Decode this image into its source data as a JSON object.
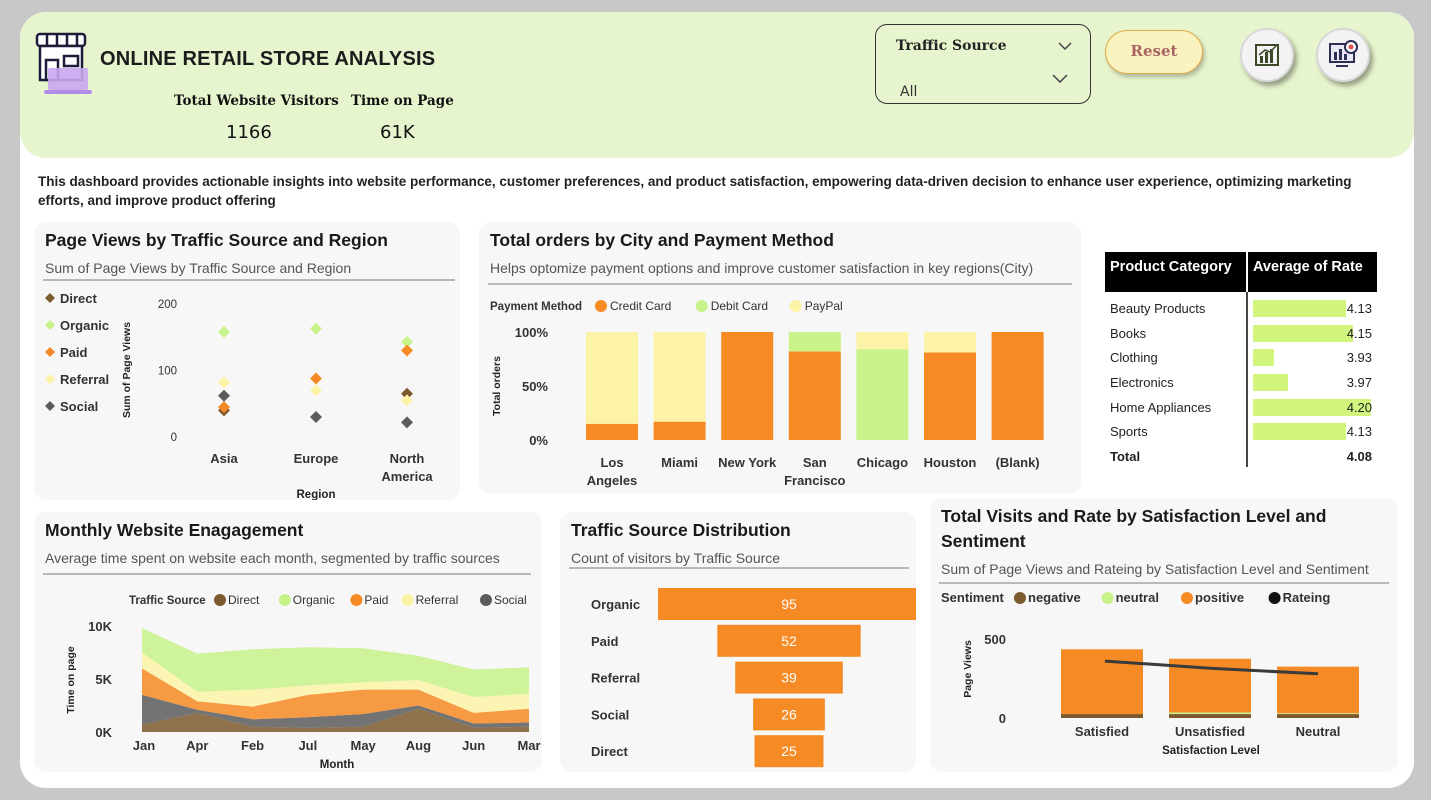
{
  "header": {
    "title": "ONLINE RETAIL STORE ANALYSIS",
    "kpis": [
      {
        "label": "Total Website Visitors",
        "value": "1166"
      },
      {
        "label": "Time on Page",
        "value": "61K"
      }
    ],
    "filter": {
      "label": "Traffic Source",
      "value": "All"
    },
    "reset_label": "Reset",
    "icons": [
      "store-logo-icon",
      "bar-chart-icon",
      "analytics-icon",
      "chevron-down-icon"
    ]
  },
  "description": "This dashboard provides actionable insights into website performance, customer preferences, and product satisfaction, empowering data-driven decision to enhance user experience, optimizing marketing efforts, and improve product offering",
  "colors": {
    "direct": "#7b5a2e",
    "organic": "#c8f28a",
    "paid": "#f68a24",
    "referral": "#fdf3a6",
    "social": "#5c5c5c",
    "accent_bar": "#d2f57e",
    "header_bg": "#e7f5ce"
  },
  "chart_data": [
    {
      "id": "page-views",
      "type": "scatter",
      "title": "Page Views by Traffic Source and Region",
      "subtitle": "Sum of Page Views by Traffic Source and Region",
      "xlabel": "Region",
      "ylabel": "Sum of Page Views",
      "ylim": [
        0,
        200
      ],
      "yticks": [
        "200",
        "100",
        "0"
      ],
      "categories": [
        "Asia",
        "Europe",
        "North America"
      ],
      "series": [
        {
          "name": "Direct",
          "values": [
            40,
            0,
            65
          ]
        },
        {
          "name": "Organic",
          "values": [
            158,
            163,
            143
          ]
        },
        {
          "name": "Paid",
          "values": [
            45,
            88,
            130
          ]
        },
        {
          "name": "Referral",
          "values": [
            82,
            70,
            55
          ]
        },
        {
          "name": "Social",
          "values": [
            62,
            30,
            22
          ]
        }
      ]
    },
    {
      "id": "orders-city",
      "type": "bar",
      "stacked": "percent",
      "title": "Total orders by City and Payment Method",
      "subtitle": "Helps optomize payment options and improve customer satisfaction in key regions(City)",
      "legend_title": "Payment Method",
      "ylabel": "Total orders",
      "yticks": [
        "100%",
        "50%",
        "0%"
      ],
      "categories": [
        "Los Angeles",
        "Miami",
        "New York",
        "San Francisco",
        "Chicago",
        "Houston",
        "(Blank)"
      ],
      "series": [
        {
          "name": "Credit Card",
          "values": [
            15,
            17,
            100,
            82,
            0,
            81,
            100
          ]
        },
        {
          "name": "Debit Card",
          "values": [
            0,
            0,
            0,
            18,
            84,
            0,
            0
          ]
        },
        {
          "name": "PayPal",
          "values": [
            85,
            83,
            0,
            0,
            16,
            19,
            0
          ]
        }
      ]
    },
    {
      "id": "monthly-engagement",
      "type": "area",
      "title": "Monthly Website Enagagement",
      "subtitle": "Average time spent on website each month, segmented by traffic sources",
      "legend_title": "Traffic Source",
      "xlabel": "Month",
      "ylabel": "Time on page",
      "yticks": [
        "10K",
        "5K",
        "0K"
      ],
      "ylim": [
        0,
        10000
      ],
      "categories": [
        "Jan",
        "Apr",
        "Feb",
        "Jul",
        "May",
        "Aug",
        "Jun",
        "Mar"
      ],
      "series": [
        {
          "name": "Direct",
          "values": [
            700,
            1800,
            500,
            400,
            500,
            2200,
            400,
            500
          ]
        },
        {
          "name": "Organic",
          "values": [
            2300,
            3600,
            3800,
            3600,
            3200,
            2300,
            2600,
            2500
          ]
        },
        {
          "name": "Paid",
          "values": [
            2500,
            800,
            1200,
            2100,
            2300,
            1500,
            1000,
            1300
          ]
        },
        {
          "name": "Referral",
          "values": [
            1500,
            900,
            1600,
            900,
            700,
            900,
            1500,
            1400
          ]
        },
        {
          "name": "Social",
          "values": [
            2800,
            300,
            700,
            1000,
            1200,
            300,
            400,
            400
          ]
        }
      ]
    },
    {
      "id": "traffic-dist",
      "type": "bar",
      "orientation": "funnel",
      "title": "Traffic Source Distribution",
      "subtitle": "Count of visitors by Traffic Source",
      "categories": [
        "Organic",
        "Paid",
        "Referral",
        "Social",
        "Direct"
      ],
      "values": [
        95,
        52,
        39,
        26,
        25
      ],
      "labels": [
        "95",
        "52",
        "39",
        "26",
        "25"
      ]
    },
    {
      "id": "satisfaction",
      "type": "bar",
      "stacked": true,
      "title": "Total Visits and Rate by Satisfaction Level and Sentiment",
      "subtitle": "Sum of Page Views and Rateing by Satisfaction Level and Sentiment",
      "legend_title": "Sentiment",
      "xlabel": "Satisfaction Level",
      "ylabel": "Page Views",
      "yticks": [
        "500",
        "0"
      ],
      "ylim": [
        0,
        500
      ],
      "categories": [
        "Satisfied",
        "Unsatisfied",
        "Neutral"
      ],
      "series": [
        {
          "name": "negative",
          "values": [
            25,
            25,
            25
          ]
        },
        {
          "name": "neutral",
          "values": [
            0,
            10,
            5
          ]
        },
        {
          "name": "positive",
          "values": [
            410,
            340,
            295
          ]
        }
      ],
      "line": {
        "name": "Rateing",
        "values": [
          360,
          315,
          280
        ]
      }
    }
  ],
  "table": {
    "headers": [
      "Product Category",
      "Average of Rate"
    ],
    "rows": [
      {
        "category": "Beauty Products",
        "value": "4.13",
        "num": 4.13
      },
      {
        "category": "Books",
        "value": "4.15",
        "num": 4.15
      },
      {
        "category": "Clothing",
        "value": "3.93",
        "num": 3.93
      },
      {
        "category": "Electronics",
        "value": "3.97",
        "num": 3.97
      },
      {
        "category": "Home Appliances",
        "value": "4.20",
        "num": 4.2
      },
      {
        "category": "Sports",
        "value": "4.13",
        "num": 4.13
      }
    ],
    "total": {
      "category": "Total",
      "value": "4.08"
    }
  }
}
